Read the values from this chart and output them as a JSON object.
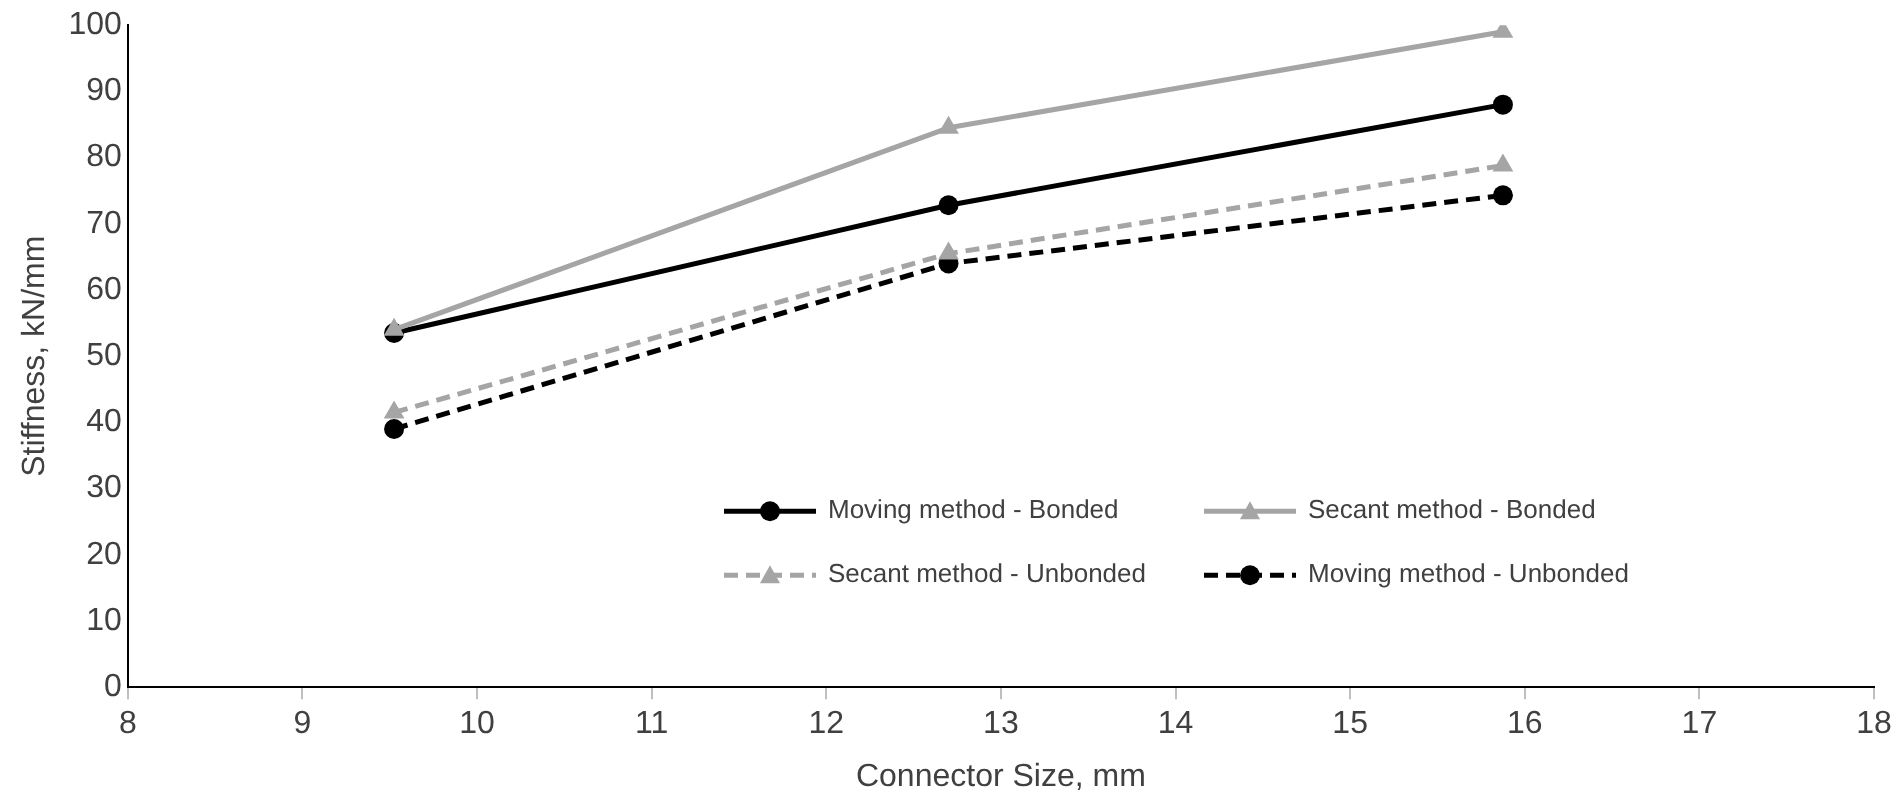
{
  "chart_data": {
    "type": "line",
    "xlabel": "Connector Size, mm",
    "ylabel": "Stiffness, kN/mm",
    "x": [
      9.525,
      12.7,
      15.875
    ],
    "series": [
      {
        "name": "Moving method - Bonded",
        "color": "#000000",
        "values": [
          53.5,
          72.8,
          88
        ],
        "marker": "circle",
        "line_style": "solid"
      },
      {
        "name": "Secant method - Bonded",
        "color": "#a5a5a5",
        "values": [
          54,
          84.5,
          99
        ],
        "marker": "triangle",
        "line_style": "solid"
      },
      {
        "name": "Secant method - Unbonded",
        "color": "#a5a5a5",
        "values": [
          41.5,
          65.5,
          78.8
        ],
        "marker": "triangle",
        "line_style": "dashed"
      },
      {
        "name": "Moving method - Unbonded",
        "color": "#000000",
        "values": [
          39,
          64,
          74.3
        ],
        "marker": "circle",
        "line_style": "dashed"
      }
    ],
    "xlim": [
      8,
      18
    ],
    "xticks": [
      8,
      9,
      10,
      11,
      12,
      13,
      14,
      15,
      16,
      17,
      18
    ],
    "ylim": [
      0,
      100
    ],
    "yticks": [
      0,
      10,
      20,
      30,
      40,
      50,
      60,
      70,
      80,
      90,
      100
    ],
    "grid": false,
    "legend": "bottom right"
  }
}
